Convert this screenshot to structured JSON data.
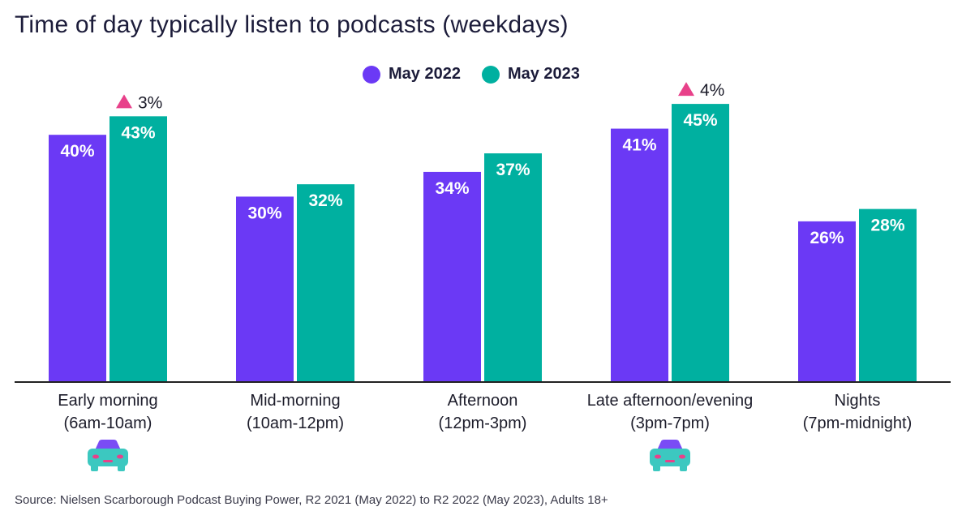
{
  "colors": {
    "series_2022": "#6b39f5",
    "series_2023": "#00b0a0",
    "increase_marker": "#e8418a",
    "axis": "#222222",
    "car_body": "#3cc8c0",
    "car_lights": "#e8418a",
    "car_roof": "#7a4cf5"
  },
  "icons": {
    "increase": "triangle-up-icon",
    "car": "car-icon"
  },
  "chart_data": {
    "type": "bar",
    "title": "Time of day typically listen to podcasts (weekdays)",
    "categories": [
      "Early morning (6am-10am)",
      "Mid-morning (10am-12pm)",
      "Afternoon (12pm-3pm)",
      "Late afternoon/evening (3pm-7pm)",
      "Nights (7pm-midnight)"
    ],
    "category_lines": [
      [
        "Early morning",
        "(6am-10am)"
      ],
      [
        "Mid-morning",
        "(10am-12pm)"
      ],
      [
        "Afternoon",
        "(12pm-3pm)"
      ],
      [
        "Late afternoon/evening",
        "(3pm-7pm)"
      ],
      [
        "Nights",
        "(7pm-midnight)"
      ]
    ],
    "series": [
      {
        "name": "May 2022",
        "values": [
          40,
          30,
          34,
          41,
          26
        ],
        "labels": [
          "40%",
          "30%",
          "34%",
          "41%",
          "26%"
        ]
      },
      {
        "name": "May 2023",
        "values": [
          43,
          32,
          37,
          45,
          28
        ],
        "labels": [
          "43%",
          "32%",
          "37%",
          "45%",
          "28%"
        ]
      }
    ],
    "increases": [
      {
        "category_index": 0,
        "label": "3%"
      },
      {
        "category_index": 3,
        "label": "4%"
      }
    ],
    "car_icon_categories": [
      0,
      3
    ],
    "ylim": [
      0,
      45
    ],
    "grid": false,
    "legend_position": "top-center",
    "xlabel": "",
    "ylabel": ""
  },
  "footer": {
    "source": "Source: Nielsen Scarborough Podcast Buying Power, R2 2021 (May 2022) to R2 2022 (May 2023), Adults 18+"
  }
}
